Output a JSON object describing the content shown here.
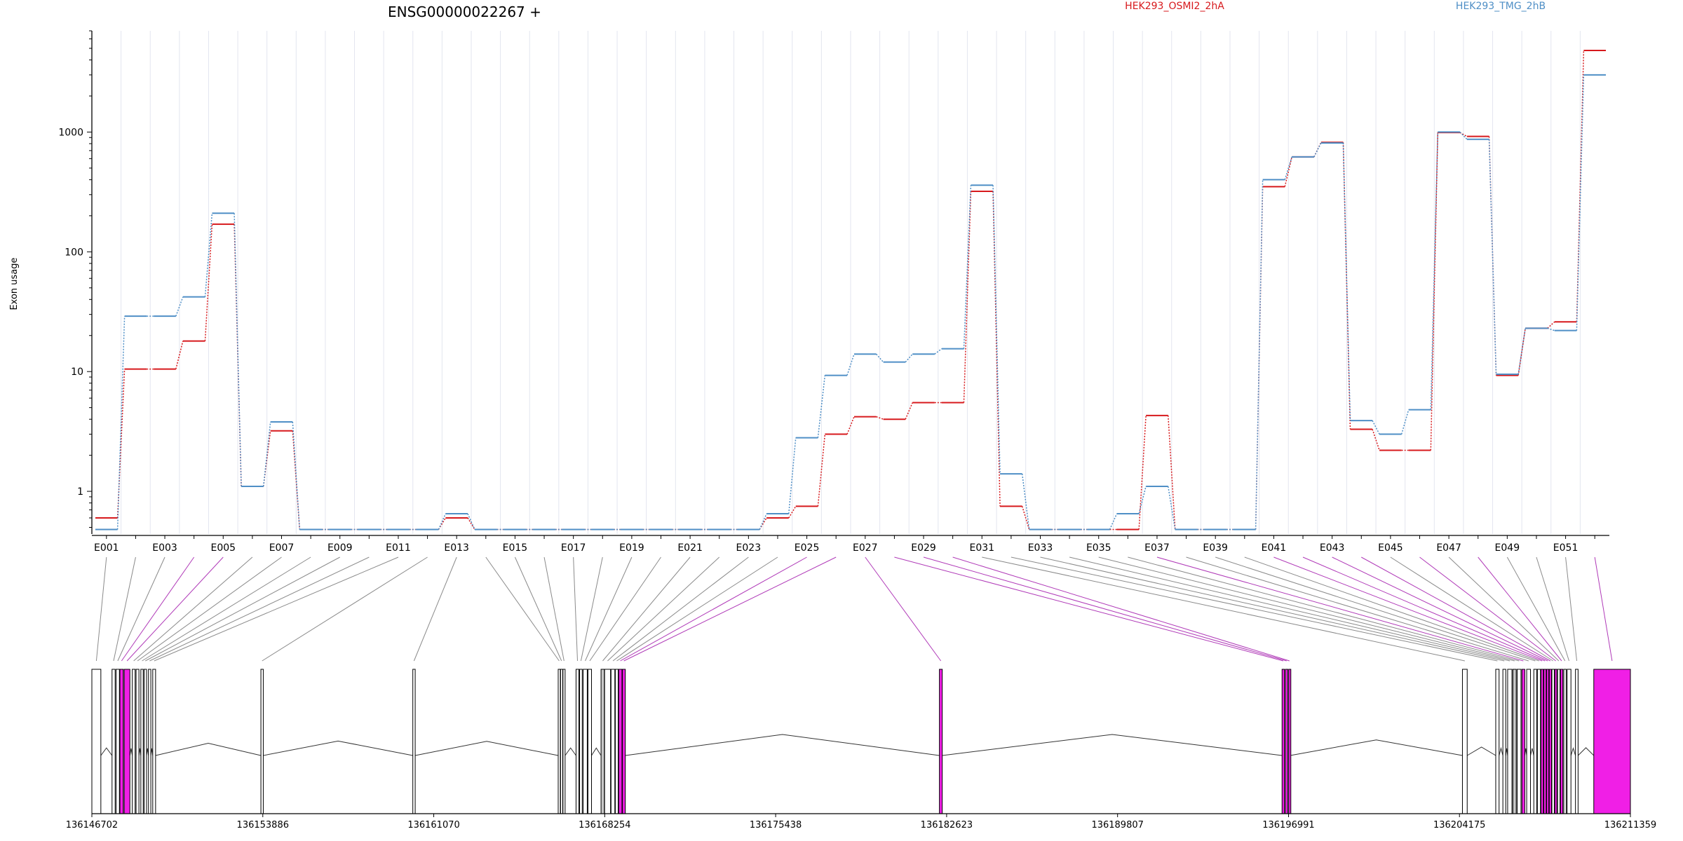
{
  "chart_data": {
    "type": "line",
    "title": "ENSG00000022267 +",
    "ylabel": "Exon usage",
    "yscale": "log",
    "ylim": [
      0.44,
      7000
    ],
    "yticks": [
      1,
      10,
      100,
      1000
    ],
    "ytick_labels": [
      "1",
      "10",
      "100",
      "1000"
    ],
    "xtick_labels": [
      "E001",
      "E003",
      "E005",
      "E007",
      "E009",
      "E011",
      "E013",
      "E015",
      "E017",
      "E019",
      "E021",
      "E023",
      "E025",
      "E027",
      "E029",
      "E031",
      "E033",
      "E035",
      "E037",
      "E039",
      "E041",
      "E043",
      "E045",
      "E047",
      "E049",
      "E051"
    ],
    "exons": [
      "E001",
      "E002",
      "E003",
      "E004",
      "E005",
      "E006",
      "E007",
      "E008",
      "E009",
      "E010",
      "E011",
      "E012",
      "E013",
      "E014",
      "E015",
      "E016",
      "E017",
      "E018",
      "E019",
      "E020",
      "E021",
      "E022",
      "E023",
      "E024",
      "E025",
      "E026",
      "E027",
      "E028",
      "E029",
      "E030",
      "E031",
      "E032",
      "E033",
      "E034",
      "E035",
      "E036",
      "E037",
      "E038",
      "E039",
      "E040",
      "E041",
      "E042",
      "E043",
      "E044",
      "E045",
      "E046",
      "E047",
      "E048",
      "E049",
      "E050",
      "E051",
      "E052"
    ],
    "series": [
      {
        "name": "HEK293_OSMI2_2hA",
        "color": "#d7191c",
        "values": [
          0.6,
          10.5,
          10.5,
          18,
          170,
          1.1,
          3.2,
          0.48,
          0.48,
          0.48,
          0.48,
          0.48,
          0.6,
          0.48,
          0.48,
          0.48,
          0.48,
          0.48,
          0.48,
          0.48,
          0.48,
          0.48,
          0.48,
          0.6,
          0.75,
          3.0,
          4.2,
          4.0,
          5.5,
          5.5,
          320,
          0.75,
          0.48,
          0.48,
          0.48,
          0.48,
          4.3,
          0.48,
          0.48,
          0.48,
          350,
          620,
          820,
          3.3,
          2.2,
          2.2,
          990,
          920,
          9.3,
          23,
          26,
          4800
        ]
      },
      {
        "name": "HEK293_TMG_2hB",
        "color": "#4f8fc6",
        "values": [
          0.48,
          29,
          29,
          42,
          210,
          1.1,
          3.8,
          0.48,
          0.48,
          0.48,
          0.48,
          0.48,
          0.65,
          0.48,
          0.48,
          0.48,
          0.48,
          0.48,
          0.48,
          0.48,
          0.48,
          0.48,
          0.48,
          0.65,
          2.8,
          9.3,
          14,
          12,
          14,
          15.5,
          360,
          1.4,
          0.48,
          0.48,
          0.48,
          0.65,
          1.1,
          0.48,
          0.48,
          0.48,
          400,
          620,
          810,
          3.9,
          3.0,
          4.8,
          1000,
          870,
          9.5,
          23,
          22,
          3000
        ]
      }
    ],
    "gene_model": {
      "coordinate_ticks": [
        "136146702",
        "136153886",
        "136161070",
        "136168254",
        "136175438",
        "136182623",
        "136189807",
        "136196991",
        "136204175",
        "136211359"
      ],
      "highlight_color": "#f01fe6",
      "exon_color": "#ffffff",
      "partial_exon_color": "#c8c8c8",
      "highlighted_exons": [
        "E004",
        "E005",
        "E025",
        "E026",
        "E027",
        "E028",
        "E029",
        "E030",
        "E037",
        "E041",
        "E042",
        "E043",
        "E044",
        "E046",
        "E048",
        "E052"
      ]
    }
  }
}
